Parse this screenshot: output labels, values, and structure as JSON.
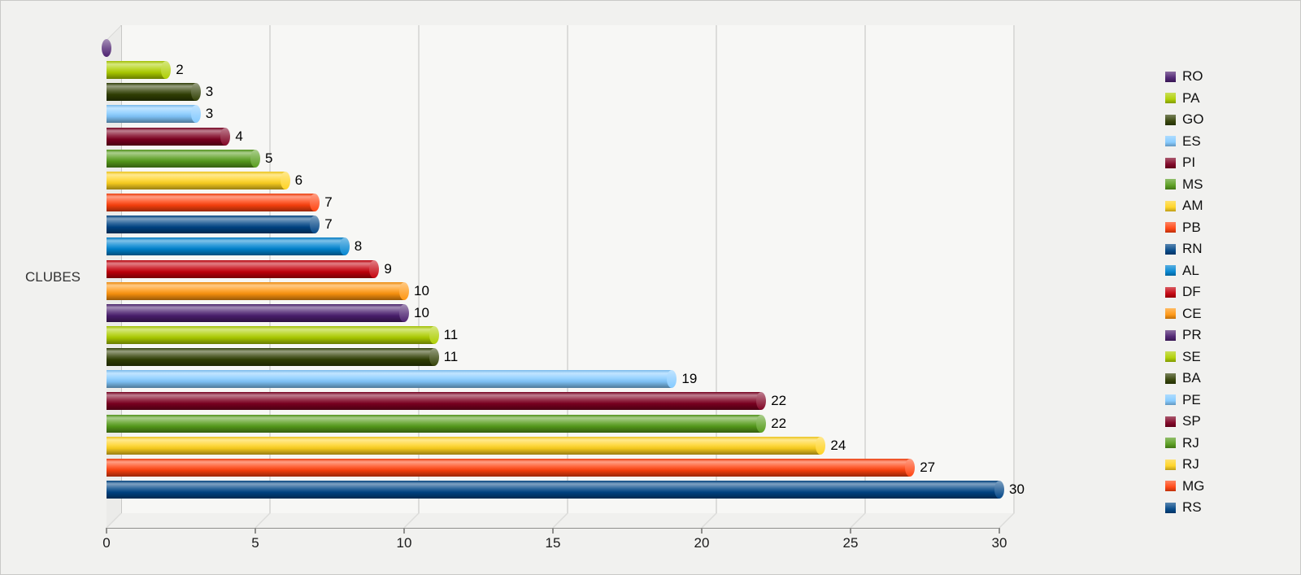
{
  "chart_data": {
    "type": "bar",
    "orientation": "horizontal",
    "style": "3d-cylinder",
    "title": "",
    "xlabel": "",
    "ylabel": "CLUBES",
    "xlim": [
      0,
      30
    ],
    "x_ticks": [
      "0",
      "5",
      "10",
      "15",
      "20",
      "25",
      "30"
    ],
    "grid": true,
    "legend_position": "right",
    "categories": [
      "RO",
      "PA",
      "GO",
      "ES",
      "PI",
      "MS",
      "AM",
      "PB",
      "RN",
      "AL",
      "DF",
      "CE",
      "PR",
      "SE",
      "BA",
      "PE",
      "SP",
      "RJ",
      "RJ",
      "MG",
      "RS"
    ],
    "values": [
      0,
      2,
      3,
      3,
      4,
      5,
      6,
      7,
      7,
      8,
      9,
      10,
      10,
      11,
      11,
      19,
      22,
      22,
      24,
      27,
      30
    ],
    "value_labels": [
      "",
      "2",
      "3",
      "3",
      "4",
      "5",
      "6",
      "7",
      "7",
      "8",
      "9",
      "10",
      "10",
      "11",
      "11",
      "19",
      "22",
      "22",
      "24",
      "27",
      "30"
    ],
    "colors": [
      "#4b1f6f",
      "#aecf00",
      "#314004",
      "#83caff",
      "#7e0021",
      "#579d1c",
      "#ffd320",
      "#ff420e",
      "#004586",
      "#0084d1",
      "#c5000b",
      "#ff950e",
      "#4b1f6f",
      "#aecf00",
      "#314004",
      "#83caff",
      "#7e0021",
      "#579d1c",
      "#ffd320",
      "#ff420e",
      "#004586"
    ],
    "background_color": "#f1f1ef"
  }
}
